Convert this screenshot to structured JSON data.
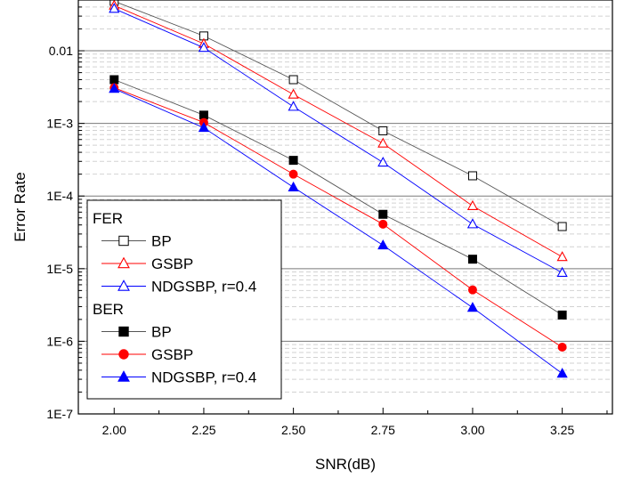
{
  "chart_data": {
    "type": "line",
    "xlabel": "SNR(dB)",
    "ylabel": "Error Rate",
    "x": [
      2.0,
      2.25,
      2.5,
      2.75,
      3.0,
      3.25
    ],
    "x_ticks": [
      "2.00",
      "2.25",
      "2.50",
      "2.75",
      "3.00",
      "3.25"
    ],
    "xlim": [
      1.9,
      3.39
    ],
    "y_scale": "log",
    "ylim": [
      1e-07,
      0.05
    ],
    "y_ticks": [
      {
        "value": 1e-07,
        "label": "1E-7"
      },
      {
        "value": 1e-06,
        "label": "1E-6"
      },
      {
        "value": 1e-05,
        "label": "1E-5"
      },
      {
        "value": 0.0001,
        "label": "1E-4"
      },
      {
        "value": 0.001,
        "label": "1E-3"
      },
      {
        "value": 0.01,
        "label": "0.01"
      }
    ],
    "grid": true,
    "legend_position": "bottom-left",
    "legend_groups": [
      {
        "title": "FER",
        "entries": [
          0,
          1,
          2
        ]
      },
      {
        "title": "BER",
        "entries": [
          3,
          4,
          5
        ]
      }
    ],
    "series": [
      {
        "name": "BP",
        "group": "FER",
        "marker": "square",
        "filled": false,
        "color": "#000000",
        "line_color": "#555555",
        "values": [
          0.048,
          0.016,
          0.004,
          0.00079,
          0.00019,
          3.8e-05
        ]
      },
      {
        "name": "GSBP",
        "group": "FER",
        "marker": "triangle",
        "filled": false,
        "color": "#ff0000",
        "line_color": "#ff0000",
        "values": [
          0.042,
          0.0125,
          0.0025,
          0.00053,
          7.3e-05,
          1.45e-05
        ]
      },
      {
        "name": "NDGSBP, r=0.4",
        "group": "FER",
        "marker": "triangle",
        "filled": false,
        "color": "#0000ff",
        "line_color": "#0000ff",
        "values": [
          0.038,
          0.011,
          0.0017,
          0.00029,
          4.1e-05,
          8.8e-06
        ]
      },
      {
        "name": "BP",
        "group": "BER",
        "marker": "square",
        "filled": true,
        "color": "#000000",
        "line_color": "#555555",
        "values": [
          0.004,
          0.0013,
          0.00031,
          5.6e-05,
          1.35e-05,
          2.3e-06
        ]
      },
      {
        "name": "GSBP",
        "group": "BER",
        "marker": "circle",
        "filled": true,
        "color": "#ff0000",
        "line_color": "#ff0000",
        "values": [
          0.0031,
          0.00103,
          0.0002,
          4.1e-05,
          5.1e-06,
          8.3e-07
        ]
      },
      {
        "name": "NDGSBP, r=0.4",
        "group": "BER",
        "marker": "triangle",
        "filled": true,
        "color": "#0000ff",
        "line_color": "#0000ff",
        "values": [
          0.003,
          0.00087,
          0.000132,
          2.1e-05,
          2.9e-06,
          3.6e-07
        ]
      }
    ]
  }
}
